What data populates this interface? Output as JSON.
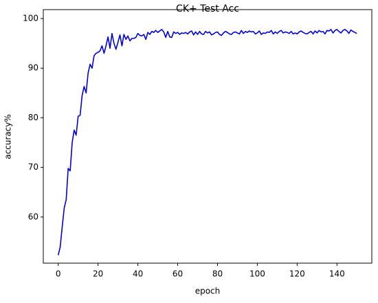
{
  "chart_data": {
    "type": "line",
    "title": "CK+ Test Acc",
    "x_label": "epoch",
    "y_label": "accuracy%",
    "x": [
      0,
      1,
      2,
      3,
      4,
      5,
      6,
      7,
      8,
      9,
      10,
      11,
      12,
      13,
      14,
      15,
      16,
      17,
      18,
      19,
      20,
      21,
      22,
      23,
      24,
      25,
      26,
      27,
      28,
      29,
      30,
      31,
      32,
      33,
      34,
      35,
      36,
      37,
      38,
      39,
      40,
      41,
      42,
      43,
      44,
      45,
      46,
      47,
      48,
      49,
      50,
      51,
      52,
      53,
      54,
      55,
      56,
      57,
      58,
      59,
      60,
      61,
      62,
      63,
      64,
      65,
      66,
      67,
      68,
      69,
      70,
      71,
      72,
      73,
      74,
      75,
      76,
      77,
      78,
      79,
      80,
      81,
      82,
      83,
      84,
      85,
      86,
      87,
      88,
      89,
      90,
      91,
      92,
      93,
      94,
      95,
      96,
      97,
      98,
      99,
      100,
      101,
      102,
      103,
      104,
      105,
      106,
      107,
      108,
      109,
      110,
      111,
      112,
      113,
      114,
      115,
      116,
      117,
      118,
      119,
      120,
      121,
      122,
      123,
      124,
      125,
      126,
      127,
      128,
      129,
      130,
      131,
      132,
      133,
      134,
      135,
      136,
      137,
      138,
      139,
      140,
      141,
      142,
      143,
      144,
      145,
      146,
      147,
      148,
      149,
      150
    ],
    "values": [
      52.3,
      54,
      58,
      61.8,
      63.5,
      69.8,
      69.3,
      75,
      77.5,
      76.5,
      80.3,
      80.5,
      84.5,
      86.3,
      85,
      89,
      90.8,
      90,
      92.5,
      93,
      93.2,
      93.5,
      94.5,
      93,
      94.5,
      96.3,
      94,
      97,
      95,
      93.8,
      95.2,
      96.7,
      94.5,
      96.8,
      95.8,
      96.5,
      95.5,
      96,
      96,
      96.2,
      97,
      96.6,
      96.5,
      96.8,
      95.8,
      97.2,
      96.8,
      97.4,
      97.2,
      97.6,
      97.2,
      97.5,
      97.8,
      97.3,
      96.2,
      97.4,
      96.3,
      96.2,
      97.3,
      97,
      97.2,
      96.8,
      97.1,
      97,
      97.2,
      96.9,
      97.3,
      97.5,
      96.7,
      97.3,
      96.8,
      97.4,
      96.9,
      96.8,
      97.4,
      97.1,
      97.3,
      96.7,
      96.9,
      97.2,
      97.3,
      96.8,
      96.6,
      97.1,
      97.4,
      97.2,
      96.9,
      96.8,
      97.2,
      97.3,
      97.1,
      96.9,
      97.6,
      97,
      97.4,
      97.2,
      97.5,
      97.3,
      97.4,
      96.9,
      97.1,
      97.5,
      96.8,
      97.1,
      97,
      97.3,
      97.2,
      97.6,
      96.9,
      97.3,
      97,
      97.4,
      97.6,
      97.1,
      97.3,
      97.2,
      97,
      97.4,
      96.9,
      97.1,
      96.9,
      97.3,
      97.5,
      97.2,
      97,
      96.9,
      97.2,
      97.4,
      96.9,
      97.5,
      97.1,
      97.6,
      97.3,
      97.4,
      96.9,
      97.6,
      97.5,
      97.8,
      97.1,
      97.6,
      97.8,
      97.4,
      97.1,
      97.6,
      97.8,
      97.5,
      97,
      97.7,
      97.4,
      97.2,
      97.0
    ],
    "color": "#0000dd",
    "xlim": [
      -7.5,
      157.5
    ],
    "xticks": [
      0,
      20,
      40,
      60,
      80,
      100,
      120,
      140
    ],
    "ylim": [
      50.7,
      101.8
    ],
    "yticks": [
      60,
      70,
      80,
      90,
      100
    ]
  }
}
